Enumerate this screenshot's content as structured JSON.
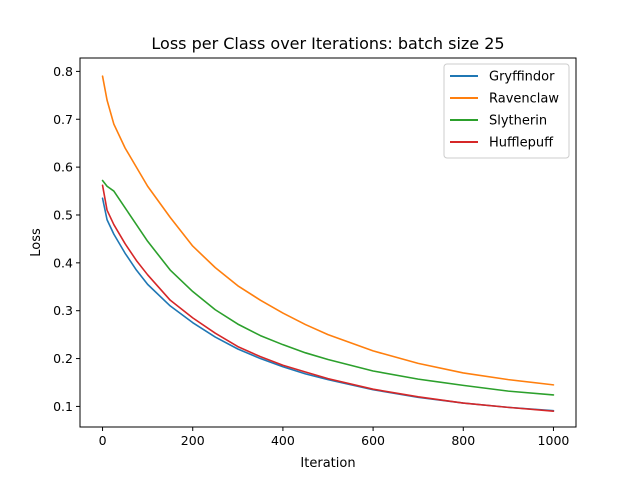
{
  "chart_data": {
    "type": "line",
    "title": "Loss per Class over Iterations: batch size 25",
    "xlabel": "Iteration",
    "ylabel": "Loss",
    "xlim": [
      -50,
      1050
    ],
    "ylim": [
      0.057,
      0.828
    ],
    "xticks": [
      0,
      200,
      400,
      600,
      800,
      1000
    ],
    "yticks": [
      0.1,
      0.2,
      0.3,
      0.4,
      0.5,
      0.6,
      0.7,
      0.8
    ],
    "xtick_labels": [
      "0",
      "200",
      "400",
      "600",
      "800",
      "1000"
    ],
    "ytick_labels": [
      "0.1",
      "0.2",
      "0.3",
      "0.4",
      "0.5",
      "0.6",
      "0.7",
      "0.8"
    ],
    "grid": false,
    "legend_position": "top-right",
    "x": [
      0,
      10,
      25,
      50,
      75,
      100,
      150,
      200,
      250,
      300,
      350,
      400,
      450,
      500,
      600,
      700,
      800,
      900,
      1000
    ],
    "series": [
      {
        "name": "Gryffindor",
        "color": "#1f77b4",
        "values": [
          0.535,
          0.49,
          0.46,
          0.42,
          0.385,
          0.355,
          0.31,
          0.275,
          0.245,
          0.22,
          0.2,
          0.183,
          0.168,
          0.156,
          0.135,
          0.119,
          0.107,
          0.098,
          0.091
        ]
      },
      {
        "name": "Ravenclaw",
        "color": "#ff7f0e",
        "values": [
          0.79,
          0.74,
          0.69,
          0.64,
          0.6,
          0.56,
          0.495,
          0.435,
          0.39,
          0.352,
          0.322,
          0.295,
          0.271,
          0.25,
          0.216,
          0.19,
          0.17,
          0.156,
          0.145
        ]
      },
      {
        "name": "Slytherin",
        "color": "#2ca02c",
        "values": [
          0.572,
          0.56,
          0.55,
          0.515,
          0.48,
          0.445,
          0.385,
          0.34,
          0.302,
          0.272,
          0.248,
          0.229,
          0.212,
          0.198,
          0.174,
          0.157,
          0.144,
          0.132,
          0.124
        ]
      },
      {
        "name": "Hufflepuff",
        "color": "#d62728",
        "values": [
          0.562,
          0.51,
          0.48,
          0.44,
          0.405,
          0.375,
          0.322,
          0.285,
          0.253,
          0.225,
          0.204,
          0.186,
          0.172,
          0.158,
          0.136,
          0.12,
          0.107,
          0.098,
          0.09
        ]
      }
    ]
  }
}
